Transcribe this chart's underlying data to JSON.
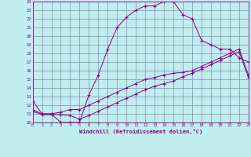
{
  "xlabel": "Windchill (Refroidissement éolien,°C)",
  "bg_color": "#c0eeee",
  "grid_color": "#8888bb",
  "line_color": "#880088",
  "xlim": [
    0,
    23
  ],
  "ylim": [
    10,
    24
  ],
  "xticks": [
    0,
    1,
    2,
    3,
    4,
    5,
    6,
    7,
    8,
    9,
    10,
    11,
    12,
    13,
    14,
    15,
    16,
    17,
    18,
    19,
    20,
    21,
    22,
    23
  ],
  "yticks": [
    10,
    11,
    12,
    13,
    14,
    15,
    16,
    17,
    18,
    19,
    20,
    21,
    22,
    23,
    24
  ],
  "curve1_x": [
    0,
    1,
    2,
    3,
    4,
    5,
    6,
    7,
    8,
    9,
    10,
    11,
    12,
    13,
    14,
    15,
    16,
    17,
    18,
    19,
    20,
    21,
    22,
    23
  ],
  "curve1_y": [
    12.5,
    11.0,
    11.0,
    10.0,
    10.0,
    10.0,
    13.2,
    15.5,
    18.5,
    21.0,
    22.2,
    23.0,
    23.5,
    23.5,
    24.0,
    24.0,
    22.5,
    22.0,
    19.5,
    19.0,
    18.5,
    18.5,
    17.5,
    17.0
  ],
  "curve2_x": [
    0,
    1,
    2,
    3,
    4,
    5,
    6,
    7,
    8,
    9,
    10,
    11,
    12,
    13,
    14,
    15,
    16,
    17,
    18,
    19,
    20,
    21,
    22,
    23
  ],
  "curve2_y": [
    11.5,
    11.0,
    11.0,
    11.2,
    11.5,
    11.5,
    12.0,
    12.5,
    13.0,
    13.5,
    14.0,
    14.5,
    15.0,
    15.2,
    15.5,
    15.7,
    15.8,
    16.0,
    16.5,
    17.0,
    17.5,
    18.0,
    18.5,
    15.5
  ],
  "curve3_x": [
    0,
    1,
    2,
    3,
    4,
    5,
    6,
    7,
    8,
    9,
    10,
    11,
    12,
    13,
    14,
    15,
    16,
    17,
    18,
    19,
    20,
    21,
    22,
    23
  ],
  "curve3_y": [
    11.3,
    10.9,
    10.9,
    10.9,
    10.8,
    10.4,
    10.8,
    11.3,
    11.8,
    12.3,
    12.8,
    13.3,
    13.8,
    14.2,
    14.5,
    14.8,
    15.3,
    15.7,
    16.2,
    16.7,
    17.2,
    17.7,
    18.2,
    15.2
  ]
}
